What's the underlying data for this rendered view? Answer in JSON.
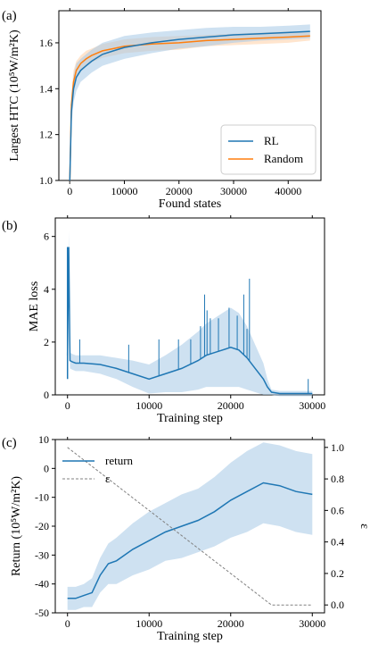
{
  "colors": {
    "rl": "#1f77b4",
    "random": "#ff7f0e",
    "band_rl": "#a6c8e6",
    "band_random": "#ffd0a6",
    "epsilon": "#808080"
  },
  "chart_data": [
    {
      "panel": "(a)",
      "type": "line",
      "xlabel": "Found states",
      "ylabel": "Largest HTC (10⁵W/m²K)",
      "xlim": [
        -2000,
        46000
      ],
      "ylim": [
        1.0,
        1.74
      ],
      "xticks": [
        0,
        10000,
        20000,
        30000,
        40000
      ],
      "yticks": [
        1.0,
        1.2,
        1.4,
        1.6
      ],
      "legend": "lower right",
      "series": [
        {
          "name": "RL",
          "color": "#1f77b4",
          "x": [
            0,
            300,
            700,
            1200,
            2000,
            3000,
            4000,
            6000,
            8000,
            10000,
            15000,
            20000,
            25000,
            30000,
            35000,
            40000,
            44000
          ],
          "y": [
            1.0,
            1.3,
            1.4,
            1.45,
            1.48,
            1.5,
            1.52,
            1.55,
            1.565,
            1.58,
            1.6,
            1.615,
            1.625,
            1.635,
            1.64,
            1.645,
            1.65
          ],
          "band": [
            0.05,
            0.06,
            0.06,
            0.06,
            0.05,
            0.05,
            0.05,
            0.05,
            0.05,
            0.05,
            0.045,
            0.04,
            0.04,
            0.035,
            0.03,
            0.03,
            0.03
          ]
        },
        {
          "name": "Random",
          "color": "#ff7f0e",
          "x": [
            0,
            300,
            700,
            1200,
            2000,
            3000,
            4000,
            6000,
            8000,
            10000,
            15000,
            20000,
            25000,
            30000,
            35000,
            40000,
            44000
          ],
          "y": [
            1.0,
            1.33,
            1.43,
            1.48,
            1.51,
            1.53,
            1.545,
            1.565,
            1.575,
            1.585,
            1.595,
            1.6,
            1.61,
            1.615,
            1.62,
            1.625,
            1.63
          ],
          "band": [
            0.05,
            0.05,
            0.05,
            0.04,
            0.035,
            0.035,
            0.03,
            0.03,
            0.03,
            0.03,
            0.03,
            0.03,
            0.025,
            0.025,
            0.025,
            0.025,
            0.02
          ]
        }
      ]
    },
    {
      "panel": "(b)",
      "type": "line",
      "xlabel": "Training step",
      "ylabel": "MAE loss",
      "xlim": [
        -1500,
        31500
      ],
      "ylim": [
        0,
        6.7
      ],
      "xticks": [
        0,
        10000,
        20000,
        30000
      ],
      "yticks": [
        0,
        2,
        4,
        6
      ],
      "series": [
        {
          "name": "",
          "color": "#1f77b4",
          "x": [
            0,
            150,
            300,
            600,
            1000,
            2000,
            4000,
            6000,
            8000,
            10000,
            12000,
            14000,
            16000,
            17000,
            18000,
            19000,
            20000,
            21000,
            22000,
            23000,
            24000,
            24500,
            25000,
            26000,
            28000,
            30000
          ],
          "y": [
            1.5,
            5.6,
            1.3,
            1.25,
            1.2,
            1.2,
            1.15,
            1.0,
            0.8,
            0.6,
            0.8,
            1.0,
            1.3,
            1.5,
            1.6,
            1.7,
            1.8,
            1.7,
            1.4,
            1.0,
            0.6,
            0.3,
            0.1,
            0.05,
            0.05,
            0.05
          ],
          "band": [
            0.4,
            0.6,
            0.3,
            0.3,
            0.3,
            0.3,
            0.35,
            0.4,
            0.5,
            0.55,
            0.7,
            0.9,
            1.1,
            1.2,
            1.3,
            1.4,
            1.5,
            1.4,
            1.2,
            0.9,
            0.6,
            0.3,
            0.1,
            0.1,
            0.1,
            0.1
          ],
          "spikes": [
            [
              1500,
              2.1
            ],
            [
              7500,
              1.9
            ],
            [
              11200,
              2.1
            ],
            [
              13600,
              2.1
            ],
            [
              15100,
              2.1
            ],
            [
              16300,
              2.6
            ],
            [
              16800,
              3.8
            ],
            [
              17100,
              3.2
            ],
            [
              17500,
              2.9
            ],
            [
              18500,
              2.9
            ],
            [
              19800,
              3.3
            ],
            [
              20800,
              3.0
            ],
            [
              21600,
              3.8
            ],
            [
              22000,
              2.5
            ],
            [
              22300,
              4.4
            ],
            [
              29500,
              0.6
            ]
          ],
          "peak": [
            0,
            5.6
          ]
        }
      ]
    },
    {
      "panel": "(c)",
      "type": "line",
      "xlabel": "Training step",
      "ylabel": "Return (10⁵W/m²K)",
      "ylabel_right": "ε",
      "xlim": [
        -1500,
        31500
      ],
      "ylim": [
        -50,
        10
      ],
      "ylim_right": [
        -0.05,
        1.05
      ],
      "xticks": [
        0,
        10000,
        20000,
        30000
      ],
      "yticks": [
        -50,
        -40,
        -30,
        -20,
        -10,
        0,
        10
      ],
      "yticks_right": [
        0.0,
        0.2,
        0.4,
        0.6,
        0.8,
        1.0
      ],
      "legend": "upper left",
      "series": [
        {
          "name": "return",
          "color": "#1f77b4",
          "x": [
            0,
            1000,
            2000,
            3000,
            4000,
            5000,
            6000,
            8000,
            10000,
            12000,
            14000,
            16000,
            18000,
            20000,
            22000,
            24000,
            26000,
            28000,
            30000
          ],
          "y": [
            -45,
            -45,
            -44,
            -43,
            -37,
            -33,
            -32,
            -28,
            -25,
            -22,
            -20,
            -18,
            -15,
            -11,
            -8,
            -5,
            -6,
            -8,
            -9
          ],
          "band": [
            4,
            4,
            4,
            5,
            6,
            7,
            8,
            9,
            10,
            10,
            11,
            11,
            12,
            13,
            14,
            14,
            14,
            14,
            14
          ]
        },
        {
          "name": "ε",
          "color": "#808080",
          "axis": "right",
          "dashed": true,
          "x": [
            0,
            25000,
            30000
          ],
          "y": [
            1.0,
            0.0,
            0.0
          ]
        }
      ]
    }
  ]
}
